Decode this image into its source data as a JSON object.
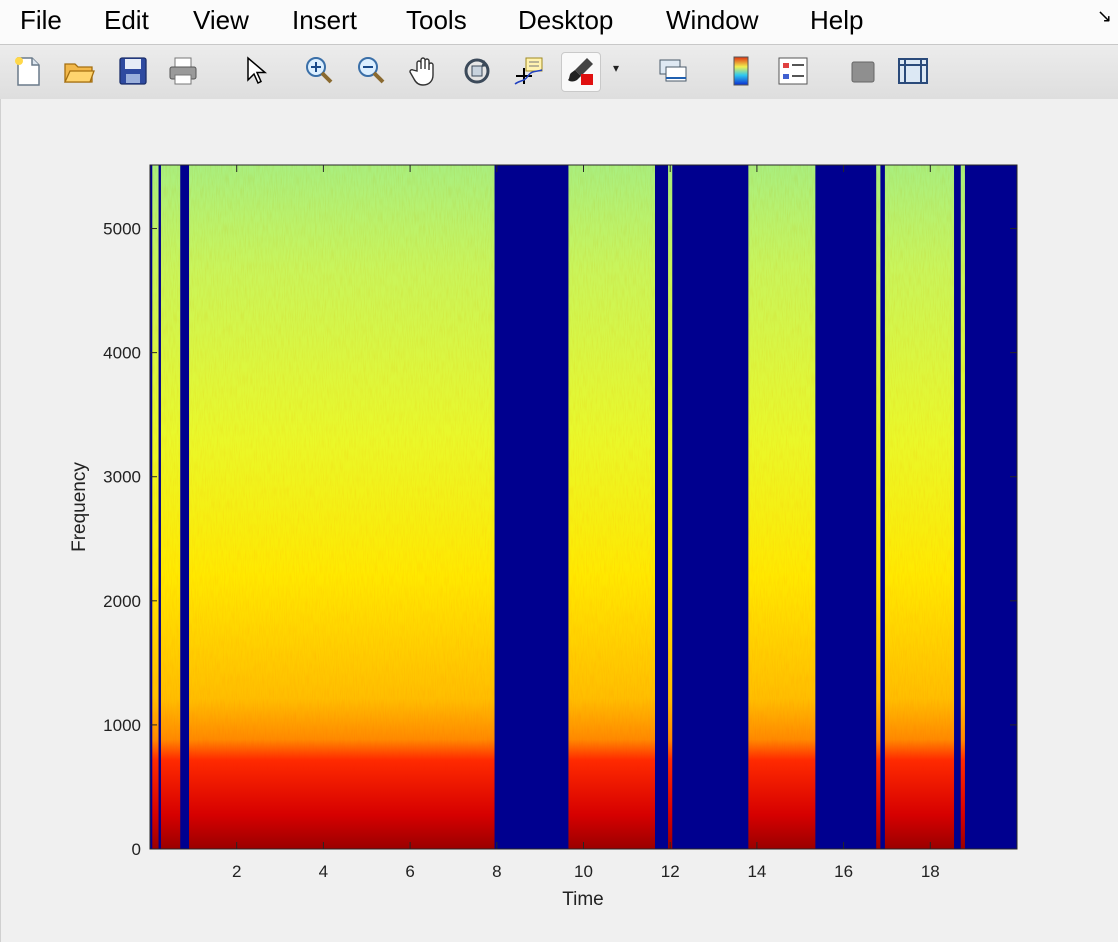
{
  "menu": {
    "items": [
      "File",
      "Edit",
      "View",
      "Insert",
      "Tools",
      "Desktop",
      "Window",
      "Help"
    ],
    "overflow_arrow": "↘"
  },
  "toolbar": {
    "icons": [
      "new-figure-icon",
      "open-file-icon",
      "save-icon",
      "print-icon",
      "pointer-icon",
      "zoom-in-icon",
      "zoom-out-icon",
      "pan-hand-icon",
      "rotate-3d-icon",
      "data-cursor-icon",
      "brush-icon",
      "link-plot-icon",
      "colorbar-icon",
      "legend-icon",
      "hide-plot-tools-icon",
      "show-plot-tools-icon"
    ],
    "dropdown_arrow": "▾"
  },
  "colors": {
    "background": "#f0f0f0",
    "silence": "#00008f",
    "accent_red": "#e01010"
  },
  "chart_data": {
    "type": "heatmap",
    "title": "",
    "xlabel": "Time",
    "ylabel": "Frequency",
    "xlim": [
      0,
      20
    ],
    "ylim": [
      0,
      5512
    ],
    "xticks": [
      2,
      4,
      6,
      8,
      10,
      12,
      14,
      16,
      18
    ],
    "yticks": [
      0,
      1000,
      2000,
      3000,
      4000,
      5000
    ],
    "colormap": "jet",
    "grid": false,
    "speech_segments": [
      {
        "start": 0.05,
        "end": 0.2
      },
      {
        "start": 0.25,
        "end": 0.7
      },
      {
        "start": 0.9,
        "end": 7.95
      },
      {
        "start": 9.65,
        "end": 11.65
      },
      {
        "start": 11.95,
        "end": 12.05
      },
      {
        "start": 13.8,
        "end": 15.35
      },
      {
        "start": 16.75,
        "end": 16.85
      },
      {
        "start": 16.95,
        "end": 18.55
      },
      {
        "start": 18.7,
        "end": 18.8
      }
    ]
  }
}
